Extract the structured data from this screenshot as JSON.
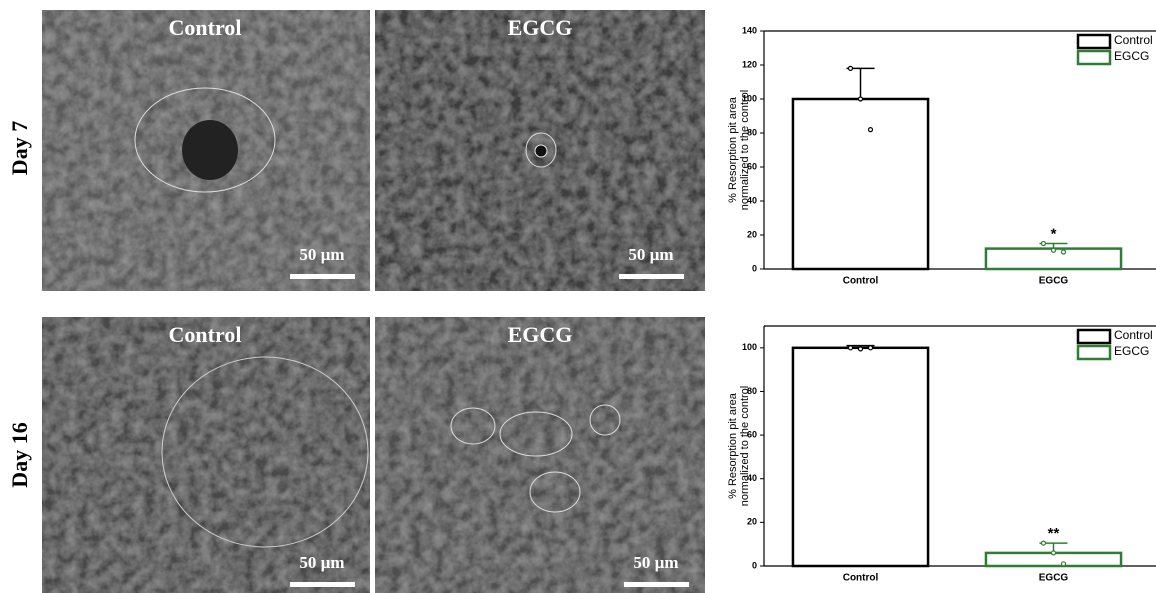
{
  "row_labels": [
    "Day 7",
    "Day 16"
  ],
  "images": [
    {
      "label": "Control",
      "scale": "50 µm"
    },
    {
      "label": "EGCG",
      "scale": "50 µm"
    },
    {
      "label": "Control",
      "scale": "50 µm"
    },
    {
      "label": "EGCG",
      "scale": "50 µm"
    }
  ],
  "chart_data": [
    {
      "type": "bar",
      "ylabel": [
        "% Resorption pit area",
        "normalized to the control"
      ],
      "categories": [
        "Control",
        "EGCG"
      ],
      "series": [
        {
          "name": "Control",
          "color": "#000000",
          "values": [
            100,
            null
          ],
          "errors": [
            18,
            null
          ],
          "points": [
            [
              118,
              100,
              82
            ],
            null
          ]
        },
        {
          "name": "EGCG",
          "color": "#2e7d32",
          "values": [
            null,
            12
          ],
          "errors": [
            null,
            3
          ],
          "points": [
            null,
            [
              15,
              11,
              10
            ]
          ],
          "annotation": "*"
        }
      ],
      "ylim": [
        0,
        140
      ],
      "yticks": [
        0,
        20,
        40,
        60,
        80,
        100,
        120,
        140
      ]
    },
    {
      "type": "bar",
      "ylabel": [
        "% Resorption pit area",
        "normalized to the control"
      ],
      "categories": [
        "Control",
        "EGCG"
      ],
      "series": [
        {
          "name": "Control",
          "color": "#000000",
          "values": [
            100,
            null
          ],
          "errors": [
            1,
            null
          ],
          "points": [
            [
              100,
              99.5,
              100
            ],
            null
          ]
        },
        {
          "name": "EGCG",
          "color": "#2e7d32",
          "values": [
            null,
            6
          ],
          "errors": [
            null,
            4.5
          ],
          "points": [
            null,
            [
              10.5,
              6,
              1
            ]
          ],
          "annotation": "**"
        }
      ],
      "ylim": [
        0,
        110
      ],
      "yticks": [
        0,
        20,
        40,
        60,
        80,
        100
      ]
    }
  ]
}
